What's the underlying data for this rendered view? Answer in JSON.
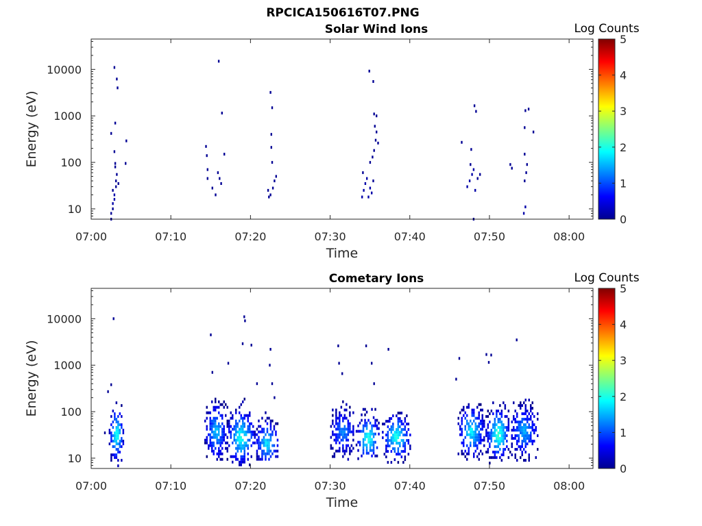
{
  "figure_title": "RPCICA150616T07.PNG",
  "chart_data": [
    {
      "type": "heatmap",
      "title": "Solar Wind Ions",
      "xlabel": "Time",
      "ylabel": "Energy (eV)",
      "x_ticks": [
        "07:00",
        "07:10",
        "07:20",
        "07:30",
        "07:40",
        "07:50",
        "08:00"
      ],
      "x_range_minutes": [
        0,
        63
      ],
      "y_scale": "log",
      "y_ticks": [
        "10",
        "100",
        "1000",
        "10000"
      ],
      "ylim": [
        6,
        45000
      ],
      "colorbar": {
        "label": "Log Counts",
        "ticks": [
          "0",
          "1",
          "2",
          "3",
          "4",
          "5"
        ],
        "range": [
          0,
          5
        ],
        "colormap": "jet"
      },
      "points": [
        [
          2.5,
          6,
          0.1
        ],
        [
          2.5,
          8,
          0.1
        ],
        [
          2.7,
          10,
          0.1
        ],
        [
          2.7,
          13,
          0.2
        ],
        [
          2.9,
          16,
          0.2
        ],
        [
          2.9,
          20,
          0.2
        ],
        [
          2.7,
          25,
          0.1
        ],
        [
          3.1,
          30,
          0.1
        ],
        [
          3.1,
          40,
          0.1
        ],
        [
          3.2,
          55,
          0.1
        ],
        [
          3.0,
          80,
          0.1
        ],
        [
          3.0,
          95,
          0.1
        ],
        [
          3.4,
          35,
          0.1
        ],
        [
          2.9,
          170,
          0.1
        ],
        [
          2.5,
          420,
          0.1
        ],
        [
          3.0,
          700,
          0.1
        ],
        [
          3.3,
          4000,
          0.1
        ],
        [
          3.2,
          6200,
          0.1
        ],
        [
          2.9,
          11000,
          0.1
        ],
        [
          4.3,
          95,
          0.1
        ],
        [
          4.4,
          290,
          0.1
        ],
        [
          14.4,
          220,
          0.1
        ],
        [
          14.5,
          140,
          0.1
        ],
        [
          14.6,
          70,
          0.1
        ],
        [
          14.6,
          45,
          0.1
        ],
        [
          15.2,
          28,
          0.1
        ],
        [
          15.6,
          20,
          0.1
        ],
        [
          15.9,
          60,
          0.1
        ],
        [
          16.1,
          45,
          0.1
        ],
        [
          16.3,
          35,
          0.1
        ],
        [
          16.0,
          15000,
          0.1
        ],
        [
          16.4,
          1150,
          0.1
        ],
        [
          16.7,
          150,
          0.1
        ],
        [
          22.2,
          25,
          0.1
        ],
        [
          22.3,
          18,
          0.1
        ],
        [
          22.5,
          20,
          0.1
        ],
        [
          22.8,
          28,
          0.1
        ],
        [
          23.0,
          40,
          0.1
        ],
        [
          23.2,
          50,
          0.1
        ],
        [
          22.7,
          100,
          0.1
        ],
        [
          22.6,
          210,
          0.1
        ],
        [
          22.6,
          400,
          0.1
        ],
        [
          22.7,
          1500,
          0.1
        ],
        [
          22.5,
          3200,
          0.1
        ],
        [
          34.0,
          18,
          0.2
        ],
        [
          34.2,
          25,
          0.2
        ],
        [
          34.4,
          35,
          0.2
        ],
        [
          34.6,
          45,
          0.2
        ],
        [
          34.8,
          18,
          0.2
        ],
        [
          35.0,
          28,
          0.2
        ],
        [
          35.2,
          22,
          0.2
        ],
        [
          34.1,
          60,
          0.1
        ],
        [
          35.4,
          40,
          0.1
        ],
        [
          35.0,
          100,
          0.1
        ],
        [
          35.3,
          130,
          0.1
        ],
        [
          35.5,
          180,
          0.1
        ],
        [
          35.7,
          300,
          0.1
        ],
        [
          35.8,
          450,
          0.1
        ],
        [
          35.6,
          600,
          0.1
        ],
        [
          35.5,
          1100,
          0.1
        ],
        [
          35.8,
          1000,
          0.1
        ],
        [
          35.4,
          5500,
          0.1
        ],
        [
          34.9,
          9200,
          0.1
        ],
        [
          36.0,
          260,
          0.1
        ],
        [
          46.5,
          270,
          0.1
        ],
        [
          47.2,
          30,
          0.2
        ],
        [
          47.5,
          40,
          0.2
        ],
        [
          47.8,
          55,
          0.2
        ],
        [
          48.0,
          70,
          0.2
        ],
        [
          48.2,
          25,
          0.2
        ],
        [
          47.6,
          90,
          0.1
        ],
        [
          48.5,
          45,
          0.1
        ],
        [
          48.8,
          55,
          0.1
        ],
        [
          47.7,
          190,
          0.1
        ],
        [
          48.1,
          1650,
          0.1
        ],
        [
          48.3,
          1250,
          0.1
        ],
        [
          48.0,
          6,
          0.1
        ],
        [
          52.6,
          90,
          0.1
        ],
        [
          52.8,
          75,
          0.1
        ],
        [
          54.3,
          8,
          0.2
        ],
        [
          54.5,
          11,
          0.2
        ],
        [
          54.4,
          40,
          0.1
        ],
        [
          54.6,
          60,
          0.1
        ],
        [
          54.7,
          90,
          0.1
        ],
        [
          54.4,
          150,
          0.1
        ],
        [
          54.4,
          560,
          0.1
        ],
        [
          54.5,
          1300,
          0.1
        ],
        [
          54.9,
          1400,
          0.1
        ],
        [
          55.5,
          450,
          0.1
        ]
      ]
    },
    {
      "type": "heatmap",
      "title": "Cometary Ions",
      "xlabel": "Time",
      "ylabel": "Energy (eV)",
      "x_ticks": [
        "07:00",
        "07:10",
        "07:20",
        "07:30",
        "07:40",
        "07:50",
        "08:00"
      ],
      "x_range_minutes": [
        0,
        63
      ],
      "y_scale": "log",
      "y_ticks": [
        "10",
        "100",
        "1000",
        "10000"
      ],
      "ylim": [
        6,
        45000
      ],
      "colorbar": {
        "label": "Log Counts",
        "ticks": [
          "0",
          "1",
          "2",
          "3",
          "4",
          "5"
        ],
        "range": [
          0,
          5
        ],
        "colormap": "jet"
      },
      "clusters": [
        {
          "t": [
            2.2,
            4.0
          ],
          "e": [
            6,
            250
          ],
          "peak": 2.0,
          "peak_e": 35
        },
        {
          "t": [
            14.2,
            17.0
          ],
          "e": [
            10,
            450
          ],
          "peak": 1.5,
          "peak_e": 40
        },
        {
          "t": [
            17.0,
            20.5
          ],
          "e": [
            7,
            300
          ],
          "peak": 2.0,
          "peak_e": 30
        },
        {
          "t": [
            20.5,
            23.5
          ],
          "e": [
            9,
            200
          ],
          "peak": 1.7,
          "peak_e": 22
        },
        {
          "t": [
            30.0,
            33.0
          ],
          "e": [
            10,
            200
          ],
          "peak": 1.2,
          "peak_e": 40
        },
        {
          "t": [
            33.2,
            36.2
          ],
          "e": [
            8,
            180
          ],
          "peak": 2.0,
          "peak_e": 28
        },
        {
          "t": [
            36.5,
            40.0
          ],
          "e": [
            7,
            150
          ],
          "peak": 2.0,
          "peak_e": 30
        },
        {
          "t": [
            46.0,
            49.3
          ],
          "e": [
            9,
            300
          ],
          "peak": 1.8,
          "peak_e": 40
        },
        {
          "t": [
            49.5,
            52.5
          ],
          "e": [
            8,
            250
          ],
          "peak": 2.2,
          "peak_e": 35
        },
        {
          "t": [
            52.5,
            56.0
          ],
          "e": [
            9,
            250
          ],
          "peak": 1.4,
          "peak_e": 40
        }
      ],
      "points": [
        [
          2.8,
          10000,
          0.1
        ],
        [
          2.1,
          270,
          0.1
        ],
        [
          2.5,
          380,
          0.1
        ],
        [
          1.7,
          35,
          0.1
        ],
        [
          15.0,
          4500,
          0.1
        ],
        [
          19.2,
          11000,
          0.1
        ],
        [
          19.3,
          9000,
          0.1
        ],
        [
          19.0,
          2900,
          0.1
        ],
        [
          20.1,
          2700,
          0.1
        ],
        [
          22.5,
          2200,
          0.1
        ],
        [
          22.4,
          1000,
          0.1
        ],
        [
          22.7,
          400,
          0.1
        ],
        [
          20.8,
          400,
          0.1
        ],
        [
          23.0,
          200,
          0.1
        ],
        [
          17.2,
          1100,
          0.1
        ],
        [
          15.2,
          700,
          0.1
        ],
        [
          31.0,
          2600,
          0.1
        ],
        [
          31.1,
          1100,
          0.1
        ],
        [
          31.5,
          660,
          0.1
        ],
        [
          34.5,
          2600,
          0.1
        ],
        [
          35.2,
          1100,
          0.1
        ],
        [
          37.3,
          2200,
          0.1
        ],
        [
          35.5,
          400,
          0.1
        ],
        [
          46.2,
          1400,
          0.1
        ],
        [
          49.6,
          1700,
          0.1
        ],
        [
          50.2,
          1650,
          0.1
        ],
        [
          49.9,
          1150,
          0.1
        ],
        [
          53.4,
          3500,
          0.1
        ],
        [
          45.8,
          500,
          0.1
        ]
      ]
    }
  ]
}
